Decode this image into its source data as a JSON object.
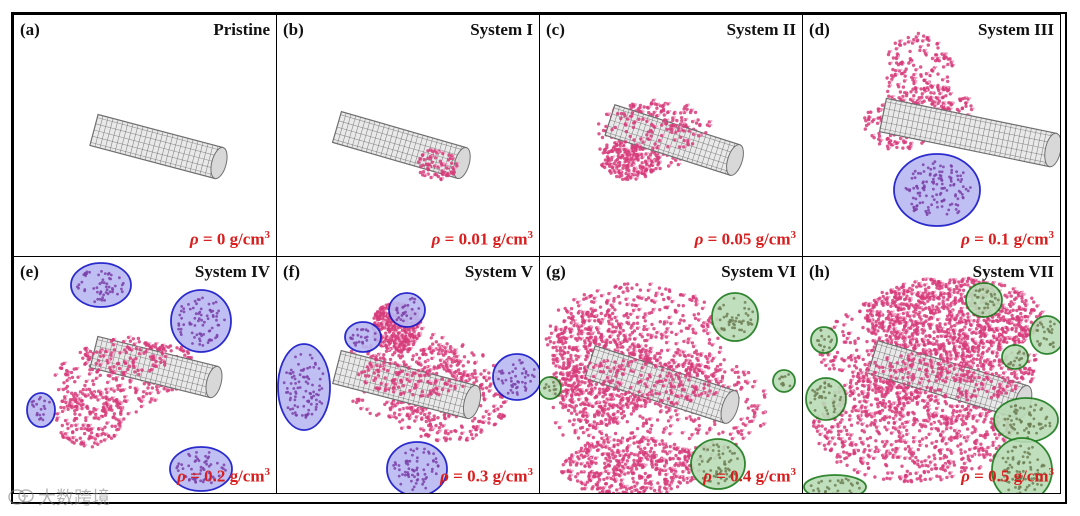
{
  "panels": [
    {
      "label": "(a)",
      "system": "Pristine",
      "density": "0",
      "unit": "g/cm",
      "exp": "3"
    },
    {
      "label": "(b)",
      "system": "System I",
      "density": "0.01",
      "unit": "g/cm",
      "exp": "3"
    },
    {
      "label": "(c)",
      "system": "System II",
      "density": "0.05",
      "unit": "g/cm",
      "exp": "3"
    },
    {
      "label": "(d)",
      "system": "System III",
      "density": "0.1",
      "unit": "g/cm",
      "exp": "3"
    },
    {
      "label": "(e)",
      "system": "System IV",
      "density": "0.2",
      "unit": "g/cm",
      "exp": "3"
    },
    {
      "label": "(f)",
      "system": "System V",
      "density": "0.3",
      "unit": "g/cm",
      "exp": "3"
    },
    {
      "label": "(g)",
      "system": "System VI",
      "density": "0.4",
      "unit": "g/cm",
      "exp": "3"
    },
    {
      "label": "(h)",
      "system": "System VII",
      "density": "0.5",
      "unit": "g/cm",
      "exp": "3"
    }
  ],
  "symbols": {
    "rho": "ρ",
    "equals": " = "
  },
  "colors": {
    "density_text": "#d81e1e",
    "nanotube": "#6f6f6f",
    "molecule": "#d63c7a",
    "blue_cluster_fill": "#b9b9f2",
    "blue_cluster_stroke": "#1515c8",
    "green_cluster_fill": "#b9dcb6",
    "green_cluster_stroke": "#1b7a1b"
  },
  "watermark": {
    "icon": "chat-bubble-icon",
    "text": "大数跨境"
  }
}
